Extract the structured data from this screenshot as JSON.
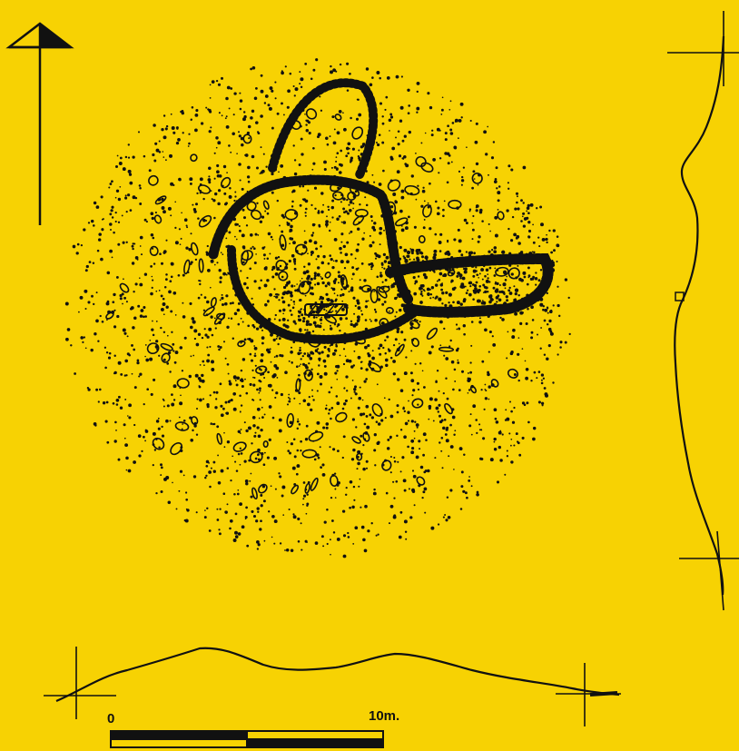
{
  "scale_bar": {
    "start_label": "0",
    "end_label": "10m."
  },
  "colors": {
    "background": "#f7d203",
    "ink": "#111111"
  },
  "icons": {
    "north_arrow": "north-arrow-icon"
  }
}
